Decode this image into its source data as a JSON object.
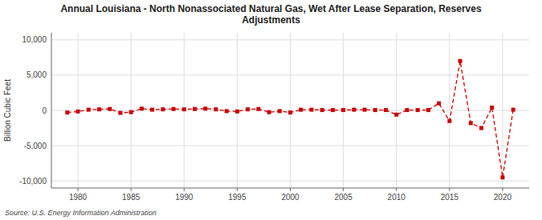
{
  "chart_data": {
    "type": "line",
    "title": "Annual Louisiana - North Nonassociated Natural Gas, Wet After Lease Separation, Reserves\nAdjustments",
    "ylabel": "Billion Cubic Feet",
    "source": "Source: U.S. Energy Information Administration",
    "x": [
      1979,
      1980,
      1981,
      1982,
      1983,
      1984,
      1985,
      1986,
      1987,
      1988,
      1989,
      1990,
      1991,
      1992,
      1993,
      1994,
      1995,
      1996,
      1997,
      1998,
      1999,
      2000,
      2001,
      2002,
      2003,
      2004,
      2005,
      2006,
      2007,
      2008,
      2009,
      2010,
      2011,
      2012,
      2013,
      2014,
      2015,
      2016,
      2017,
      2018,
      2019,
      2020,
      2021
    ],
    "values": [
      -300,
      -150,
      100,
      150,
      200,
      -350,
      -250,
      250,
      100,
      150,
      200,
      150,
      200,
      250,
      150,
      -100,
      -150,
      150,
      200,
      -250,
      -100,
      -300,
      100,
      100,
      50,
      50,
      50,
      100,
      100,
      50,
      50,
      -600,
      50,
      50,
      50,
      1000,
      -1500,
      7000,
      -1800,
      -2500,
      400,
      -9500,
      100
    ],
    "color": "#cc0000",
    "line_style": "dashed",
    "marker": "square",
    "xlim": [
      1977.5,
      2022.5
    ],
    "ylim": [
      -11000,
      11000
    ],
    "xticks": [
      1980,
      1985,
      1990,
      1995,
      2000,
      2005,
      2010,
      2015,
      2020
    ],
    "yticks": [
      {
        "value": -10000,
        "label": "-10,000"
      },
      {
        "value": -5000,
        "label": "-5,000"
      },
      0,
      {
        "value": 5000,
        "label": "5,000"
      },
      {
        "value": 10000,
        "label": "10,000"
      }
    ],
    "grid": true
  }
}
